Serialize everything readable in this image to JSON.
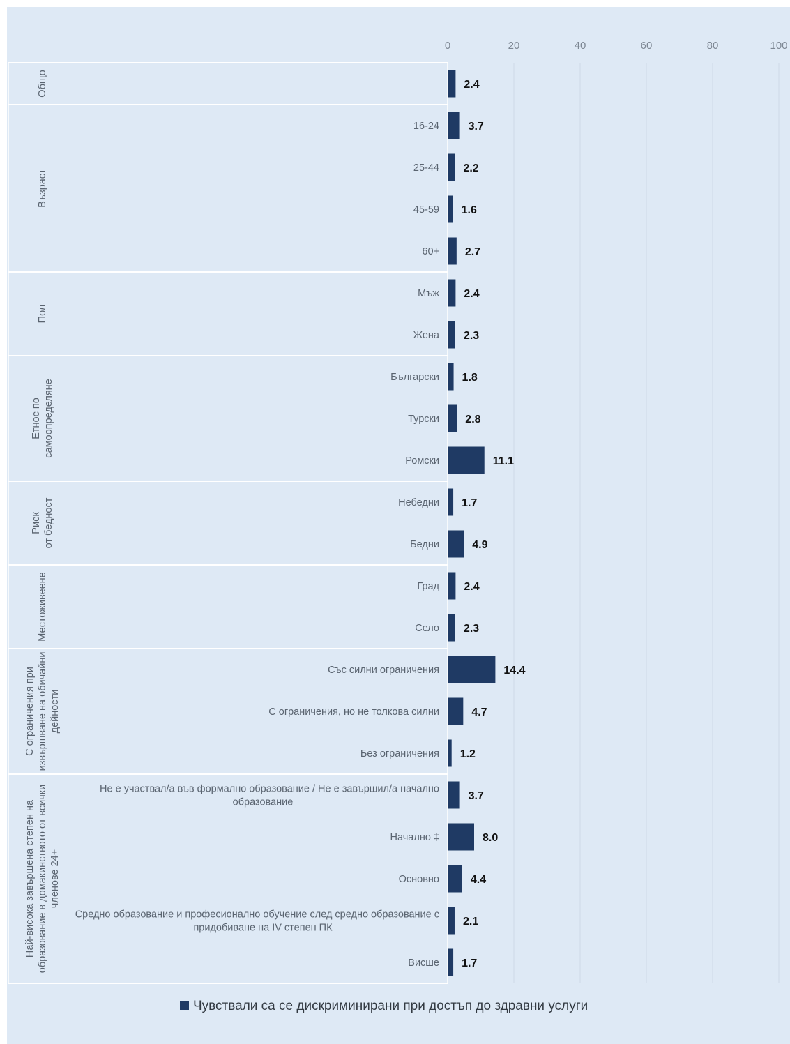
{
  "chart_data": {
    "type": "bar",
    "orientation": "horizontal",
    "xlim": [
      0,
      100
    ],
    "x_ticks": [
      "0",
      "20",
      "40",
      "60",
      "80",
      "100"
    ],
    "grid": true,
    "legend_position": "bottom",
    "series": [
      {
        "name": "Чувствали са се дискриминирани при достъп до здравни услуги",
        "color": "#1f3a64"
      }
    ],
    "groups": [
      {
        "label": [
          "Общо"
        ],
        "items": [
          {
            "label": [
              ""
            ],
            "value": 2.4,
            "value_label": "2.4"
          }
        ]
      },
      {
        "label": [
          "Възраст"
        ],
        "items": [
          {
            "label": [
              "16-24"
            ],
            "value": 3.7,
            "value_label": "3.7"
          },
          {
            "label": [
              "25-44"
            ],
            "value": 2.2,
            "value_label": "2.2"
          },
          {
            "label": [
              "45-59"
            ],
            "value": 1.6,
            "value_label": "1.6"
          },
          {
            "label": [
              "60+"
            ],
            "value": 2.7,
            "value_label": "2.7"
          }
        ]
      },
      {
        "label": [
          "Пол"
        ],
        "items": [
          {
            "label": [
              "Мъж"
            ],
            "value": 2.4,
            "value_label": "2.4"
          },
          {
            "label": [
              "Жена"
            ],
            "value": 2.3,
            "value_label": "2.3"
          }
        ]
      },
      {
        "label": [
          "Етнос по",
          "самоопределяне"
        ],
        "items": [
          {
            "label": [
              "Български"
            ],
            "value": 1.8,
            "value_label": "1.8"
          },
          {
            "label": [
              "Турски"
            ],
            "value": 2.8,
            "value_label": "2.8"
          },
          {
            "label": [
              "Ромски"
            ],
            "value": 11.1,
            "value_label": "11.1"
          }
        ]
      },
      {
        "label": [
          "Риск",
          "от бедност"
        ],
        "items": [
          {
            "label": [
              "Небедни"
            ],
            "value": 1.7,
            "value_label": "1.7"
          },
          {
            "label": [
              "Бедни"
            ],
            "value": 4.9,
            "value_label": "4.9"
          }
        ]
      },
      {
        "label": [
          "Местоживеене"
        ],
        "items": [
          {
            "label": [
              "Град"
            ],
            "value": 2.4,
            "value_label": "2.4"
          },
          {
            "label": [
              "Село"
            ],
            "value": 2.3,
            "value_label": "2.3"
          }
        ]
      },
      {
        "label": [
          "С ограничения при",
          "извършване на обичайни",
          "дейности"
        ],
        "items": [
          {
            "label": [
              "Със силни ограничения"
            ],
            "value": 14.4,
            "value_label": "14.4"
          },
          {
            "label": [
              "С ограничения, но не толкова силни"
            ],
            "value": 4.7,
            "value_label": "4.7"
          },
          {
            "label": [
              "Без ограничения"
            ],
            "value": 1.2,
            "value_label": "1.2"
          }
        ]
      },
      {
        "label": [
          "Най-висока завършена степен на",
          "образование в домакинството от всички",
          "членове 24+"
        ],
        "items": [
          {
            "label": [
              "Не е участвал/а във формално образование / Не е завършил/а начално",
              "образование"
            ],
            "value": 3.7,
            "value_label": "3.7"
          },
          {
            "label": [
              "Начално ‡"
            ],
            "value": 8.0,
            "value_label": "8.0"
          },
          {
            "label": [
              "Основно"
            ],
            "value": 4.4,
            "value_label": "4.4"
          },
          {
            "label": [
              "Средно образование и професионално обучение след средно образование с",
              "придобиване на IV степен ПК"
            ],
            "value": 2.1,
            "value_label": "2.1"
          },
          {
            "label": [
              "Висше"
            ],
            "value": 1.7,
            "value_label": "1.7"
          }
        ]
      }
    ]
  }
}
